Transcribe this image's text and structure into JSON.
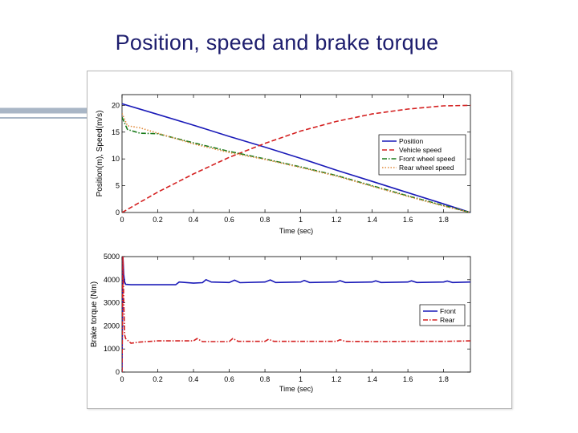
{
  "slide": {
    "title": "Position, speed and brake torque",
    "accent_color": "#a9b6c6",
    "title_color": "#1e1e6e"
  },
  "chart_data": [
    {
      "type": "line",
      "title": "",
      "xlabel": "Time (sec)",
      "ylabel": "Position(m), Speed(m/s)",
      "xlim": [
        0,
        1.95
      ],
      "ylim": [
        0,
        22
      ],
      "xticks": [
        "0",
        "0.2",
        "0.4",
        "0.6",
        "0.8",
        "1",
        "1.2",
        "1.4",
        "1.6",
        "1.8"
      ],
      "xtick_values": [
        0,
        0.2,
        0.4,
        0.6,
        0.8,
        1.0,
        1.2,
        1.4,
        1.6,
        1.8
      ],
      "yticks": [
        "0",
        "5",
        "10",
        "15",
        "20"
      ],
      "ytick_values": [
        0,
        5,
        10,
        15,
        20
      ],
      "grid": false,
      "legend": "right",
      "series": [
        {
          "name": "Position",
          "color": "#1a1ab8",
          "dash": "solid",
          "x": [
            0,
            0.2,
            0.4,
            0.6,
            0.8,
            1.0,
            1.2,
            1.4,
            1.6,
            1.8,
            1.95
          ],
          "y": [
            20.3,
            18.3,
            16.3,
            14.2,
            12.2,
            10.1,
            7.9,
            5.8,
            3.7,
            1.6,
            0.0
          ]
        },
        {
          "name": "Vehicle speed",
          "color": "#d42020",
          "dash": "dashed",
          "x": [
            0,
            0.2,
            0.4,
            0.6,
            0.8,
            1.0,
            1.2,
            1.4,
            1.6,
            1.8,
            1.95
          ],
          "y": [
            0.0,
            3.8,
            7.2,
            10.3,
            12.9,
            15.2,
            17.0,
            18.4,
            19.3,
            19.9,
            20.0
          ]
        },
        {
          "name": "Front wheel speed",
          "color": "#1a7a1a",
          "dash": "dashdot",
          "x": [
            0,
            0.03,
            0.1,
            0.2,
            0.4,
            0.6,
            0.8,
            1.0,
            1.2,
            1.4,
            1.6,
            1.8,
            1.95
          ],
          "y": [
            17.8,
            15.5,
            14.8,
            14.7,
            13.0,
            11.4,
            10.0,
            8.5,
            6.9,
            5.0,
            3.1,
            1.3,
            0.0
          ]
        },
        {
          "name": "Rear wheel speed",
          "color": "#e08a3a",
          "dash": "dotted",
          "x": [
            0,
            0.03,
            0.1,
            0.2,
            0.4,
            0.6,
            0.8,
            1.0,
            1.2,
            1.4,
            1.6,
            1.8,
            1.95
          ],
          "y": [
            18.5,
            16.2,
            15.8,
            14.8,
            12.8,
            11.2,
            9.9,
            8.4,
            6.8,
            4.9,
            3.0,
            1.2,
            0.0
          ]
        }
      ]
    },
    {
      "type": "line",
      "title": "",
      "xlabel": "Time (sec)",
      "ylabel": "Brake torque (Nm)",
      "xlim": [
        0,
        1.95
      ],
      "ylim": [
        0,
        5000
      ],
      "xticks": [
        "0",
        "0.2",
        "0.4",
        "0.6",
        "0.8",
        "1",
        "1.2",
        "1.4",
        "1.6",
        "1.8"
      ],
      "xtick_values": [
        0,
        0.2,
        0.4,
        0.6,
        0.8,
        1.0,
        1.2,
        1.4,
        1.6,
        1.8
      ],
      "yticks": [
        "0",
        "1000",
        "2000",
        "3000",
        "4000",
        "5000"
      ],
      "ytick_values": [
        0,
        1000,
        2000,
        3000,
        4000,
        5000
      ],
      "grid": false,
      "legend": "right",
      "series": [
        {
          "name": "Front",
          "color": "#1a1ab8",
          "dash": "solid",
          "x": [
            0,
            0.005,
            0.01,
            0.015,
            0.02,
            0.05,
            0.3,
            0.32,
            0.4,
            0.45,
            0.47,
            0.5,
            0.6,
            0.63,
            0.66,
            0.8,
            0.83,
            0.86,
            1.0,
            1.02,
            1.05,
            1.2,
            1.22,
            1.25,
            1.4,
            1.42,
            1.45,
            1.6,
            1.62,
            1.65,
            1.8,
            1.82,
            1.85,
            1.95
          ],
          "y": [
            0,
            5000,
            4200,
            3900,
            3800,
            3780,
            3780,
            3900,
            3850,
            3870,
            4000,
            3900,
            3880,
            3980,
            3870,
            3900,
            3990,
            3880,
            3900,
            3970,
            3880,
            3900,
            3960,
            3880,
            3900,
            3950,
            3880,
            3900,
            3950,
            3880,
            3900,
            3940,
            3880,
            3900
          ]
        },
        {
          "name": "Rear",
          "color": "#d42020",
          "dash": "dashdot",
          "x": [
            0,
            0.005,
            0.01,
            0.015,
            0.02,
            0.05,
            0.1,
            0.2,
            0.4,
            0.42,
            0.45,
            0.6,
            0.62,
            0.65,
            0.8,
            0.82,
            0.85,
            1.0,
            1.2,
            1.22,
            1.25,
            1.4,
            1.6,
            1.8,
            1.95
          ],
          "y": [
            0,
            5000,
            3000,
            1600,
            1450,
            1250,
            1300,
            1350,
            1350,
            1450,
            1320,
            1320,
            1450,
            1330,
            1330,
            1420,
            1330,
            1330,
            1330,
            1400,
            1330,
            1320,
            1330,
            1330,
            1350
          ]
        }
      ]
    }
  ]
}
